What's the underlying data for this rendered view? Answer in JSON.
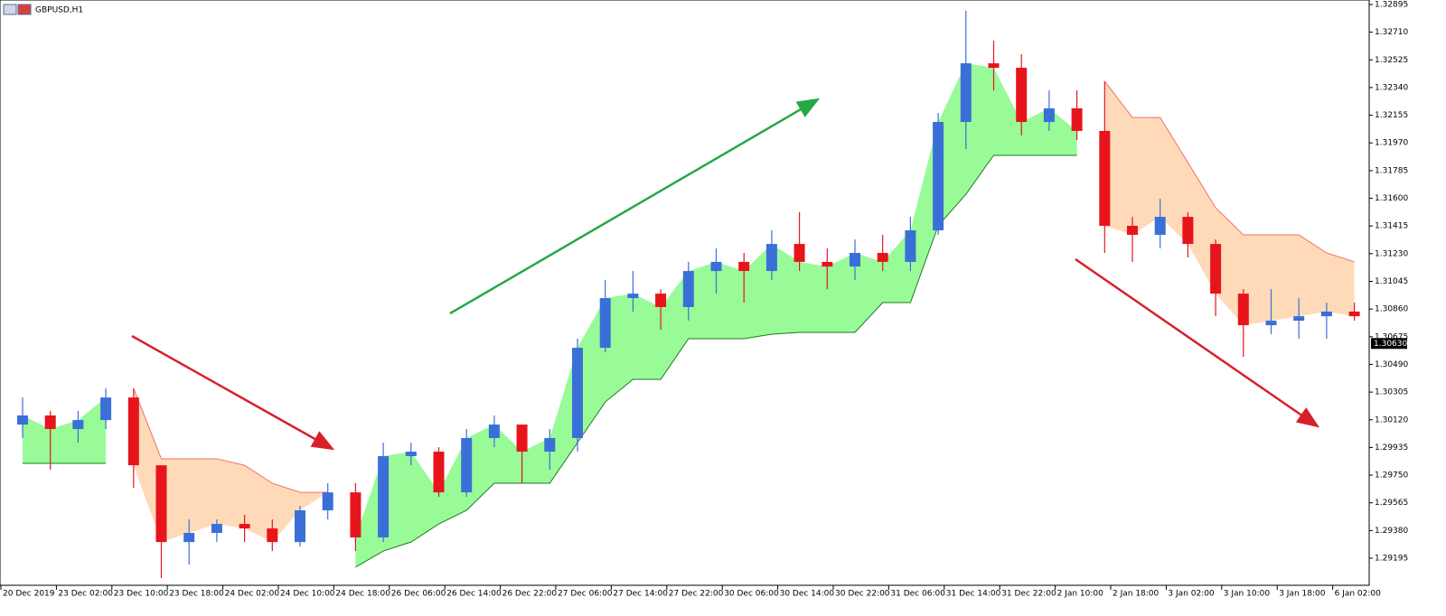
{
  "chart_data": {
    "type": "candlestick",
    "title": "GBPUSD,H1",
    "categories": [
      "20 Dec 2019",
      null,
      "23 Dec 02:00",
      null,
      "23 Dec 10:00",
      null,
      "23 Dec 18:00",
      null,
      "24 Dec 02:00",
      null,
      "24 Dec 10:00",
      null,
      "24 Dec 18:00",
      null,
      "26 Dec 06:00",
      null,
      "26 Dec 14:00",
      null,
      "26 Dec 22:00",
      null,
      "27 Dec 06:00",
      null,
      "27 Dec 14:00",
      null,
      "27 Dec 22:00",
      null,
      "30 Dec 06:00",
      null,
      "30 Dec 14:00",
      null,
      "30 Dec 22:00",
      null,
      "31 Dec 06:00",
      null,
      "31 Dec 14:00",
      null,
      "31 Dec 22:00",
      null,
      "2 Jan 10:00",
      null,
      "2 Jan 18:00",
      null,
      "3 Jan 02:00",
      null,
      "3 Jan 10:00",
      null,
      "3 Jan 18:00",
      null,
      "6 Jan 02:00"
    ],
    "open": [
      1.30088,
      1.30149,
      1.30058,
      1.30118,
      1.30269,
      1.29816,
      1.29303,
      1.29364,
      1.29424,
      1.29394,
      1.29303,
      1.29515,
      1.29635,
      1.29334,
      1.29877,
      1.29907,
      1.29635,
      1.29998,
      1.30088,
      1.29907,
      1.29998,
      1.30601,
      1.30933,
      1.30963,
      1.30873,
      1.31114,
      1.31175,
      1.31114,
      1.31295,
      1.31175,
      1.31144,
      1.31235,
      1.31175,
      1.31386,
      1.3211,
      1.32502,
      1.32472,
      1.3211,
      1.32201,
      1.3205,
      1.31416,
      1.31356,
      1.31476,
      1.31295,
      1.30963,
      1.30752,
      1.30782,
      1.30812,
      1.30843
    ],
    "high": [
      1.30269,
      1.30179,
      1.30179,
      1.3033,
      1.3033,
      1.29816,
      1.29454,
      1.29454,
      1.29485,
      1.29454,
      1.29545,
      1.29696,
      1.29696,
      1.29967,
      1.29967,
      1.29937,
      1.30058,
      1.30149,
      1.30088,
      1.30058,
      1.30662,
      1.31054,
      1.31114,
      1.30993,
      1.31175,
      1.31265,
      1.31235,
      1.31386,
      1.31507,
      1.31265,
      1.31325,
      1.31356,
      1.31476,
      1.3217,
      1.32853,
      1.32653,
      1.32563,
      1.32321,
      1.32321,
      1.32382,
      1.31476,
      1.31597,
      1.31507,
      1.31325,
      1.30993,
      1.30993,
      1.30933,
      1.30903,
      1.30903
    ],
    "low": [
      1.29998,
      1.29786,
      1.29967,
      1.30058,
      1.29666,
      1.29062,
      1.29153,
      1.29303,
      1.29303,
      1.29243,
      1.29273,
      1.29454,
      1.29243,
      1.29303,
      1.29816,
      1.29605,
      1.29605,
      1.29937,
      1.29696,
      1.29786,
      1.29907,
      1.30571,
      1.30843,
      1.30722,
      1.30782,
      1.30963,
      1.30903,
      1.31054,
      1.31114,
      1.30993,
      1.31054,
      1.31114,
      1.31114,
      1.31356,
      1.31929,
      1.32321,
      1.3202,
      1.3205,
      1.31989,
      1.31235,
      1.31175,
      1.31265,
      1.31205,
      1.30812,
      1.30541,
      1.30692,
      1.30662,
      1.30662,
      1.30782
    ],
    "close": [
      1.30149,
      1.30058,
      1.30118,
      1.30269,
      1.29816,
      1.29303,
      1.29364,
      1.29424,
      1.29394,
      1.29303,
      1.29515,
      1.29635,
      1.29334,
      1.29877,
      1.29907,
      1.29635,
      1.29998,
      1.30088,
      1.29907,
      1.29998,
      1.30601,
      1.30933,
      1.30963,
      1.30873,
      1.31114,
      1.31175,
      1.31114,
      1.31295,
      1.31175,
      1.31144,
      1.31235,
      1.31175,
      1.31386,
      1.3211,
      1.32502,
      1.32472,
      1.3211,
      1.32201,
      1.3205,
      1.31416,
      1.31356,
      1.31476,
      1.31295,
      1.30963,
      1.30752,
      1.30782,
      1.30812,
      1.30843,
      1.30812
    ],
    "up_color": "#3b6fd8",
    "down_color": "#e8141c",
    "support": {
      "color": "#1f7a1f",
      "fill": "#98fb98",
      "values": [
        1.29829,
        1.29829,
        1.29829,
        1.29829,
        null,
        null,
        null,
        null,
        null,
        null,
        null,
        null,
        1.29135,
        1.29243,
        1.29303,
        1.29424,
        1.29515,
        1.29696,
        1.29696,
        1.29696,
        1.29967,
        1.30239,
        1.3039,
        1.3039,
        1.30662,
        1.30662,
        1.30662,
        1.30692,
        1.30704,
        1.30704,
        1.30704,
        1.30903,
        1.30903,
        1.31416,
        1.31627,
        1.31887,
        1.31887,
        1.31887,
        1.31887,
        null,
        null,
        null,
        null,
        null,
        null,
        null,
        null,
        null,
        null
      ]
    },
    "resistance": {
      "color": "#f07070",
      "fill": "#ffdab9",
      "values": [
        null,
        null,
        null,
        null,
        1.3033,
        1.29859,
        1.29859,
        1.29859,
        1.29816,
        1.29696,
        1.29635,
        1.29635,
        null,
        null,
        null,
        null,
        null,
        null,
        null,
        null,
        null,
        null,
        null,
        null,
        null,
        null,
        null,
        null,
        null,
        null,
        null,
        null,
        null,
        null,
        null,
        null,
        null,
        null,
        null,
        1.32382,
        1.3214,
        1.3214,
        1.31839,
        1.31537,
        1.31356,
        1.31356,
        1.31356,
        1.31235,
        1.31175
      ]
    },
    "last_price": {
      "value": 1.3063,
      "label": "1.30630"
    },
    "ylim": [
      1.29014,
      1.32925
    ],
    "yticks": [
      1.32895,
      {
        "value": 1.3271,
        "label": "1.32710"
      },
      1.32525,
      {
        "value": 1.3234,
        "label": "1.32340"
      },
      1.32155,
      {
        "value": 1.3197,
        "label": "1.31970"
      },
      1.31785,
      {
        "value": 1.316,
        "label": "1.31600"
      },
      1.31415,
      {
        "value": 1.3123,
        "label": "1.31230"
      },
      1.31045,
      {
        "value": 1.3086,
        "label": "1.30860"
      },
      1.30675,
      {
        "value": 1.3049,
        "label": "1.30490"
      },
      1.30305,
      {
        "value": 1.3012,
        "label": "1.30120"
      },
      1.29935,
      {
        "value": 1.2975,
        "label": "1.29750"
      },
      1.29565,
      {
        "value": 1.2938,
        "label": "1.29380"
      },
      1.29195
    ]
  }
}
